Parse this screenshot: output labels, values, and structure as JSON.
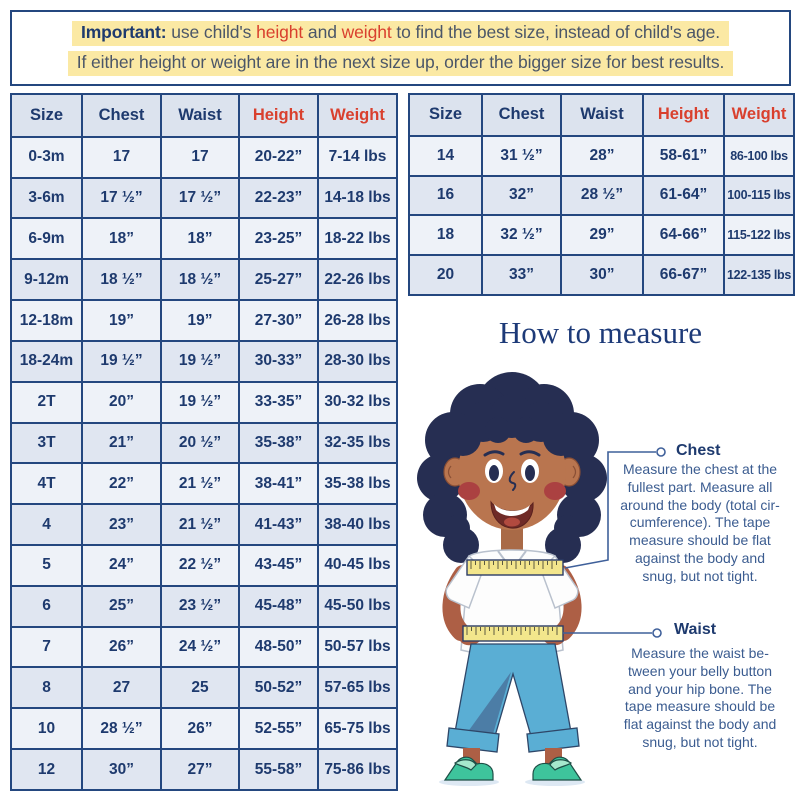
{
  "banner": {
    "line1": {
      "bold": "Important:",
      "t1": " use child's ",
      "red1": "height",
      "t2": " and ",
      "red2": "weight",
      "t3": " to find the best size, instead of child's age."
    },
    "line2": "If either height or weight are in the next size up, order the bigger size for best results."
  },
  "size_table_left": {
    "headers": [
      "Size",
      "Chest",
      "Waist",
      "Height",
      "Weight"
    ],
    "rows": [
      [
        "0-3m",
        "17",
        "17",
        "20-22”",
        "7-14 lbs"
      ],
      [
        "3-6m",
        "17 ½”",
        "17 ½”",
        "22-23”",
        "14-18 lbs"
      ],
      [
        "6-9m",
        "18”",
        "18”",
        "23-25”",
        "18-22 lbs"
      ],
      [
        "9-12m",
        "18 ½”",
        "18 ½”",
        "25-27”",
        "22-26 lbs"
      ],
      [
        "12-18m",
        "19”",
        "19”",
        "27-30”",
        "26-28 lbs"
      ],
      [
        "18-24m",
        "19 ½”",
        "19 ½”",
        "30-33”",
        "28-30 lbs"
      ],
      [
        "2T",
        "20”",
        "19 ½”",
        "33-35”",
        "30-32 lbs"
      ],
      [
        "3T",
        "21”",
        "20 ½”",
        "35-38”",
        "32-35 lbs"
      ],
      [
        "4T",
        "22”",
        "21 ½”",
        "38-41”",
        "35-38 lbs"
      ],
      [
        "4",
        "23”",
        "21 ½”",
        "41-43”",
        "38-40 lbs"
      ],
      [
        "5",
        "24”",
        "22 ½”",
        "43-45”",
        "40-45 lbs"
      ],
      [
        "6",
        "25”",
        "23 ½”",
        "45-48”",
        "45-50 lbs"
      ],
      [
        "7",
        "26”",
        "24 ½”",
        "48-50”",
        "50-57 lbs"
      ],
      [
        "8",
        "27",
        "25",
        "50-52”",
        "57-65 lbs"
      ],
      [
        "10",
        "28 ½”",
        "26”",
        "52-55”",
        "65-75 lbs"
      ],
      [
        "12",
        "30”",
        "27”",
        "55-58”",
        "75-86 lbs"
      ]
    ]
  },
  "size_table_right": {
    "headers": [
      "Size",
      "Chest",
      "Waist",
      "Height",
      "Weight"
    ],
    "rows": [
      [
        "14",
        "31 ½”",
        "28”",
        "58-61”",
        "86-100 lbs"
      ],
      [
        "16",
        "32”",
        "28 ½”",
        "61-64”",
        "100-115 lbs"
      ],
      [
        "18",
        "32 ½”",
        "29”",
        "64-66”",
        "115-122 lbs"
      ],
      [
        "20",
        "33”",
        "30”",
        "66-67”",
        "122-135 lbs"
      ]
    ]
  },
  "measure": {
    "title": "How to measure",
    "chest_label": "Chest",
    "chest_text": "Measure the chest at the\nfullest part. Measure all\naround the body (total cir-\ncumference). The tape\nmeasure should be flat\nagainst the body and\nsnug, but not tight.",
    "waist_label": "Waist",
    "waist_text": "Measure the waist be-\ntween your belly button\nand your hip bone. The\ntape measure should be\nflat against the body and\nsnug, but not tight."
  },
  "colors": {
    "navy_text": "#1e3a6e",
    "red_accent": "#d9402e",
    "highlight_yellow": "#fbe9a4",
    "table_border": "#24477f",
    "row_light": "#eef2f8",
    "row_dark": "#e0e6f1",
    "header_bg": "#dce3ee",
    "paragraph_blue": "#3b5c90"
  }
}
